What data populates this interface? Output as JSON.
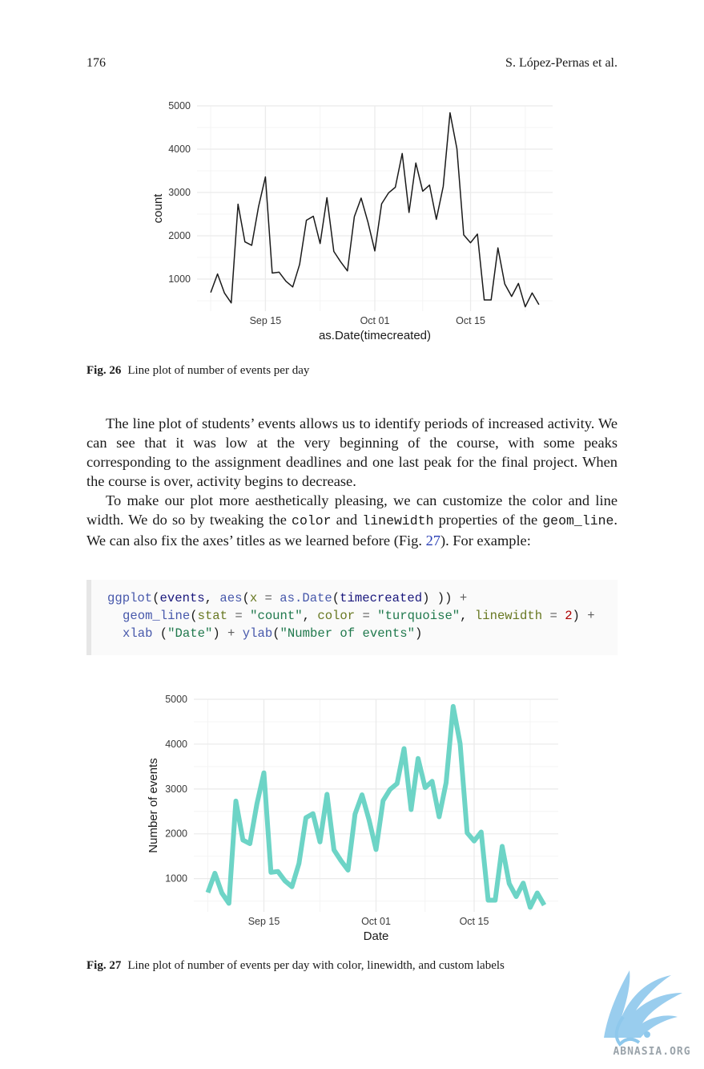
{
  "header": {
    "page_number": "176",
    "authors": "S. López-Pernas et al."
  },
  "figure1": {
    "caption_label": "Fig. 26",
    "caption_text": "Line plot of number of events per day",
    "line_color": "#1a1a1a"
  },
  "figure2": {
    "caption_label": "Fig. 27",
    "caption_text": "Line plot of number of events per day with color, linewidth, and custom labels",
    "line_color": "#6dd4c6"
  },
  "chart_data": [
    {
      "type": "line",
      "title": "",
      "xlabel": "as.Date(timecreated)",
      "ylabel": "count",
      "x_tick_labels": [
        "Sep 15",
        "Oct 01",
        "Oct 15"
      ],
      "y_tick_labels": [
        "1000",
        "2000",
        "3000",
        "4000",
        "5000"
      ],
      "x_ticks": [
        "2022-09-15",
        "2022-10-01",
        "2022-10-15"
      ],
      "y_ticks": [
        1000,
        2000,
        3000,
        4000,
        5000
      ],
      "ylim": [
        260,
        5000
      ],
      "xlim": [
        "2022-09-05",
        "2022-10-27"
      ],
      "grid": true,
      "x": [
        "2022-09-07",
        "2022-09-08",
        "2022-09-09",
        "2022-09-10",
        "2022-09-11",
        "2022-09-12",
        "2022-09-13",
        "2022-09-14",
        "2022-09-15",
        "2022-09-16",
        "2022-09-17",
        "2022-09-18",
        "2022-09-19",
        "2022-09-20",
        "2022-09-21",
        "2022-09-22",
        "2022-09-23",
        "2022-09-24",
        "2022-09-25",
        "2022-09-26",
        "2022-09-27",
        "2022-09-28",
        "2022-09-29",
        "2022-09-30",
        "2022-10-01",
        "2022-10-02",
        "2022-10-03",
        "2022-10-04",
        "2022-10-05",
        "2022-10-06",
        "2022-10-07",
        "2022-10-08",
        "2022-10-09",
        "2022-10-10",
        "2022-10-11",
        "2022-10-12",
        "2022-10-13",
        "2022-10-14",
        "2022-10-15",
        "2022-10-16",
        "2022-10-17",
        "2022-10-18",
        "2022-10-19",
        "2022-10-20",
        "2022-10-21",
        "2022-10-22",
        "2022-10-23",
        "2022-10-24",
        "2022-10-25"
      ],
      "values": [
        690,
        1120,
        680,
        450,
        2730,
        1860,
        1780,
        2670,
        3360,
        1140,
        1160,
        950,
        820,
        1340,
        2360,
        2450,
        1820,
        2880,
        1640,
        1400,
        1190,
        2440,
        2870,
        2310,
        1650,
        2740,
        2990,
        3120,
        3900,
        2540,
        3680,
        3030,
        3170,
        2380,
        3140,
        4840,
        4010,
        2020,
        1840,
        2040,
        520,
        520,
        1720,
        890,
        600,
        900,
        360,
        680,
        410
      ]
    },
    {
      "type": "line",
      "title": "",
      "xlabel": "Date",
      "ylabel": "Number of events",
      "x_tick_labels": [
        "Sep 15",
        "Oct 01",
        "Oct 15"
      ],
      "y_tick_labels": [
        "1000",
        "2000",
        "3000",
        "4000",
        "5000"
      ],
      "x_ticks": [
        "2022-09-15",
        "2022-10-01",
        "2022-10-15"
      ],
      "y_ticks": [
        1000,
        2000,
        3000,
        4000,
        5000
      ],
      "ylim": [
        260,
        5000
      ],
      "xlim": [
        "2022-09-05",
        "2022-10-27"
      ],
      "grid": true,
      "x": [
        "2022-09-07",
        "2022-09-08",
        "2022-09-09",
        "2022-09-10",
        "2022-09-11",
        "2022-09-12",
        "2022-09-13",
        "2022-09-14",
        "2022-09-15",
        "2022-09-16",
        "2022-09-17",
        "2022-09-18",
        "2022-09-19",
        "2022-09-20",
        "2022-09-21",
        "2022-09-22",
        "2022-09-23",
        "2022-09-24",
        "2022-09-25",
        "2022-09-26",
        "2022-09-27",
        "2022-09-28",
        "2022-09-29",
        "2022-09-30",
        "2022-10-01",
        "2022-10-02",
        "2022-10-03",
        "2022-10-04",
        "2022-10-05",
        "2022-10-06",
        "2022-10-07",
        "2022-10-08",
        "2022-10-09",
        "2022-10-10",
        "2022-10-11",
        "2022-10-12",
        "2022-10-13",
        "2022-10-14",
        "2022-10-15",
        "2022-10-16",
        "2022-10-17",
        "2022-10-18",
        "2022-10-19",
        "2022-10-20",
        "2022-10-21",
        "2022-10-22",
        "2022-10-23",
        "2022-10-24",
        "2022-10-25"
      ],
      "values": [
        690,
        1120,
        680,
        450,
        2730,
        1860,
        1780,
        2670,
        3360,
        1140,
        1160,
        950,
        820,
        1340,
        2360,
        2450,
        1820,
        2880,
        1640,
        1400,
        1190,
        2440,
        2870,
        2310,
        1650,
        2740,
        2990,
        3120,
        3900,
        2540,
        3680,
        3030,
        3170,
        2380,
        3140,
        4840,
        4010,
        2020,
        1840,
        2040,
        520,
        520,
        1720,
        890,
        600,
        900,
        360,
        680,
        410
      ]
    }
  ],
  "body": {
    "p1": "The line plot of students’ events allows us to identify periods of increased activity. We can see that it was low at the very beginning of the course, with some peaks corresponding to the assignment deadlines and one last peak for the final project. When the course is over, activity begins to decrease.",
    "p2": {
      "t1": "To make our plot more aesthetically pleasing, we can customize the color and line width. We do so by tweaking the ",
      "c1": "color",
      "t2": " and ",
      "c2": "linewidth",
      "t3": " properties of the ",
      "c3": "geom_line",
      "t4": ". We can also fix the axes’ titles as we learned before (Fig. ",
      "ref": "27",
      "t5": "). For example:"
    }
  },
  "code": {
    "l1": {
      "fn1": "ggplot",
      "p1": "(",
      "v1": "events",
      "p2": ", ",
      "fn2": "aes",
      "p3": "(",
      "a1": "x",
      "o1": " = ",
      "fn3": "as.Date",
      "p4": "(",
      "v2": "timecreated",
      "p5": ") ))",
      "o2": " +"
    },
    "l2": {
      "fn1": "geom_line",
      "p1": "(",
      "a1": "stat",
      "o1": " = ",
      "s1": "\"count\"",
      "p2": ", ",
      "a2": "color",
      "o2": " = ",
      "s2": "\"turquoise\"",
      "p3": ", ",
      "a3": "linewidth",
      "o3": " = ",
      "n1": "2",
      "p4": ")",
      "o4": " +"
    },
    "l3": {
      "fn1": "xlab",
      "p1": " (",
      "s1": "\"Date\"",
      "p2": ")",
      "o1": " + ",
      "fn2": "ylab",
      "p3": "(",
      "s2": "\"Number of events\"",
      "p4": ")"
    }
  },
  "watermark": {
    "text": "ABNASIA.ORG",
    "color": "#8ec8ec"
  }
}
